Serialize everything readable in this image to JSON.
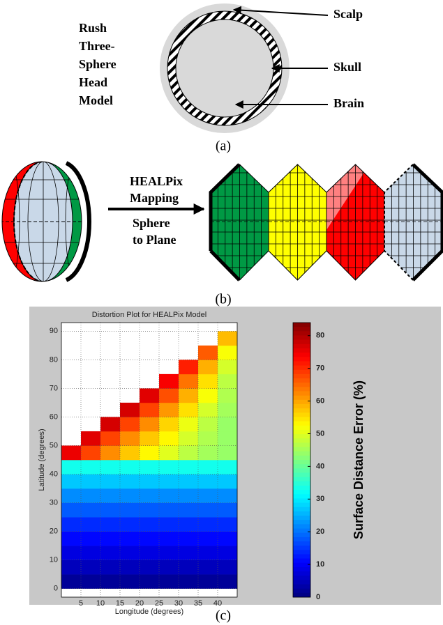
{
  "diagram": {
    "panel_a": {
      "model_label": [
        "Rush",
        "Three-",
        "Sphere",
        "Head",
        "Model"
      ],
      "layers": [
        "Scalp",
        "Skull",
        "Brain"
      ],
      "caption": "(a)"
    },
    "panel_b": {
      "mapping_label": [
        "HEALPix",
        "Mapping"
      ],
      "direction_label": [
        "Sphere",
        "to Plane"
      ],
      "caption": "(b)"
    },
    "panel_c": {
      "caption": "(c)"
    }
  },
  "chart_data": {
    "type": "heatmap",
    "title": "Distortion Plot for HEALPix Model",
    "x_label": "Longitude (degrees)",
    "y_label": "Latitude (degrees)",
    "x": [
      2.5,
      7.5,
      12.5,
      17.5,
      22.5,
      27.5,
      32.5,
      37.5,
      42.5
    ],
    "y": [
      2.5,
      7.5,
      12.5,
      17.5,
      22.5,
      27.5,
      32.5,
      37.5,
      42.5,
      47.5,
      52.5,
      57.5,
      62.5,
      67.5,
      72.5,
      77.5,
      82.5,
      87.5
    ],
    "values": [
      [
        2,
        2,
        2,
        2,
        2,
        2,
        2,
        2,
        2
      ],
      [
        5,
        5,
        5,
        5,
        5,
        5,
        5,
        5,
        5
      ],
      [
        8,
        8,
        8,
        8,
        8,
        8,
        8,
        8,
        8
      ],
      [
        11,
        11,
        11,
        11,
        11,
        11,
        11,
        11,
        11
      ],
      [
        14,
        14,
        14,
        14,
        14,
        14,
        14,
        14,
        14
      ],
      [
        18,
        18,
        18,
        18,
        18,
        18,
        18,
        18,
        18
      ],
      [
        22,
        22,
        22,
        22,
        22,
        22,
        22,
        22,
        22
      ],
      [
        27,
        27,
        27,
        27,
        27,
        27,
        27,
        27,
        27
      ],
      [
        33,
        33,
        33,
        33,
        33,
        33,
        33,
        33,
        33
      ],
      [
        75,
        68,
        62,
        57,
        53,
        50,
        47,
        45,
        44
      ],
      [
        null,
        76,
        68,
        62,
        57,
        53,
        49,
        46,
        44
      ],
      [
        null,
        null,
        77,
        68,
        62,
        56,
        51,
        47,
        44
      ],
      [
        null,
        null,
        null,
        77,
        68,
        61,
        55,
        49,
        45
      ],
      [
        null,
        null,
        null,
        null,
        76,
        67,
        59,
        52,
        46
      ],
      [
        null,
        null,
        null,
        null,
        null,
        74,
        64,
        55,
        47
      ],
      [
        null,
        null,
        null,
        null,
        null,
        null,
        71,
        59,
        49
      ],
      [
        null,
        null,
        null,
        null,
        null,
        null,
        null,
        66,
        52
      ],
      [
        null,
        null,
        null,
        null,
        null,
        null,
        null,
        null,
        58
      ]
    ],
    "xlim": [
      0,
      45
    ],
    "ylim": [
      -3,
      93
    ],
    "xticks": [
      5,
      10,
      15,
      20,
      25,
      30,
      35,
      40
    ],
    "yticks": [
      0,
      10,
      20,
      30,
      40,
      50,
      60,
      70,
      80,
      90
    ],
    "grid": true,
    "colormap": "jet",
    "colorbar_label": "Surface Distance Error (%)",
    "clim": [
      0,
      84
    ],
    "cticks": [
      0,
      10,
      20,
      30,
      40,
      50,
      60,
      70,
      80
    ]
  }
}
